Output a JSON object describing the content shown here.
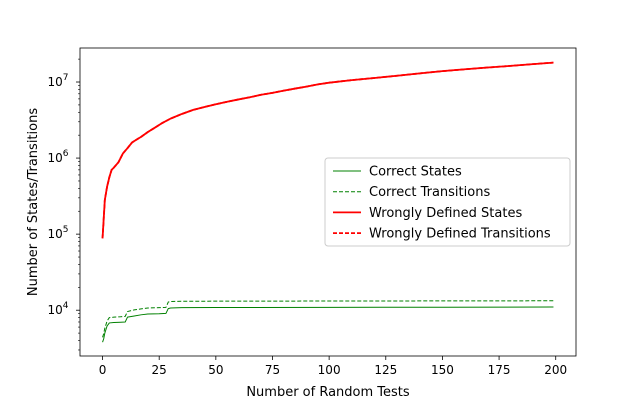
{
  "chart_data": {
    "type": "line",
    "title": "",
    "xlabel": "Number of Random Tests",
    "ylabel": "Number of States/Transitions",
    "xlim": [
      -9.95,
      208.95
    ],
    "ylim": [
      2500,
      28000000
    ],
    "yscale": "log",
    "grid": false,
    "legend_position": "center-right",
    "x_ticks": [
      0,
      25,
      50,
      75,
      100,
      125,
      150,
      175,
      200
    ],
    "y_ticks": [
      {
        "value": 10000,
        "base": "10",
        "exp": "4"
      },
      {
        "value": 100000,
        "base": "10",
        "exp": "5"
      },
      {
        "value": 1000000,
        "base": "10",
        "exp": "6"
      },
      {
        "value": 10000000,
        "base": "10",
        "exp": "7"
      }
    ],
    "series": [
      {
        "name": "Correct States",
        "color": "#008000",
        "style": "solid",
        "width": 1,
        "points": [
          [
            0,
            3800
          ],
          [
            0.5,
            4200
          ],
          [
            1,
            5000
          ],
          [
            2,
            6200
          ],
          [
            3,
            6800
          ],
          [
            5,
            6900
          ],
          [
            8,
            6950
          ],
          [
            10,
            7000
          ],
          [
            11,
            8100
          ],
          [
            14,
            8400
          ],
          [
            17,
            8700
          ],
          [
            20,
            8900
          ],
          [
            25,
            9000
          ],
          [
            28,
            9100
          ],
          [
            29,
            10500
          ],
          [
            30,
            10700
          ],
          [
            35,
            10800
          ],
          [
            50,
            10850
          ],
          [
            100,
            10900
          ],
          [
            150,
            10950
          ],
          [
            199,
            11000
          ]
        ]
      },
      {
        "name": "Correct Transitions",
        "color": "#008000",
        "style": "dashed",
        "width": 1,
        "points": [
          [
            0,
            4400
          ],
          [
            0.5,
            4900
          ],
          [
            1,
            5800
          ],
          [
            2,
            7200
          ],
          [
            3,
            8000
          ],
          [
            5,
            8100
          ],
          [
            8,
            8200
          ],
          [
            10,
            8300
          ],
          [
            11,
            9600
          ],
          [
            14,
            10100
          ],
          [
            17,
            10400
          ],
          [
            20,
            10700
          ],
          [
            25,
            10800
          ],
          [
            28,
            10900
          ],
          [
            29,
            12800
          ],
          [
            30,
            13000
          ],
          [
            35,
            13100
          ],
          [
            50,
            13150
          ],
          [
            100,
            13200
          ],
          [
            150,
            13250
          ],
          [
            199,
            13300
          ]
        ]
      },
      {
        "name": "Wrongly Defined States",
        "color": "#ff0000",
        "style": "solid",
        "width": 1.8,
        "points": [
          [
            0,
            88000
          ],
          [
            1,
            280000
          ],
          [
            2,
            420000
          ],
          [
            3,
            560000
          ],
          [
            4,
            700000
          ],
          [
            5,
            750000
          ],
          [
            7,
            880000
          ],
          [
            9,
            1150000
          ],
          [
            11,
            1350000
          ],
          [
            13,
            1600000
          ],
          [
            15,
            1750000
          ],
          [
            17,
            1900000
          ],
          [
            20,
            2200000
          ],
          [
            23,
            2500000
          ],
          [
            26,
            2850000
          ],
          [
            30,
            3300000
          ],
          [
            35,
            3800000
          ],
          [
            40,
            4300000
          ],
          [
            45,
            4700000
          ],
          [
            50,
            5100000
          ],
          [
            55,
            5500000
          ],
          [
            60,
            5900000
          ],
          [
            65,
            6300000
          ],
          [
            70,
            6800000
          ],
          [
            75,
            7200000
          ],
          [
            80,
            7700000
          ],
          [
            85,
            8200000
          ],
          [
            90,
            8700000
          ],
          [
            95,
            9300000
          ],
          [
            100,
            9800000
          ],
          [
            110,
            10600000
          ],
          [
            120,
            11300000
          ],
          [
            130,
            12100000
          ],
          [
            140,
            13000000
          ],
          [
            150,
            13900000
          ],
          [
            160,
            14700000
          ],
          [
            170,
            15500000
          ],
          [
            180,
            16300000
          ],
          [
            190,
            17200000
          ],
          [
            199,
            18000000
          ]
        ]
      },
      {
        "name": "Wrongly Defined Transitions",
        "color": "#ff0000",
        "style": "dashed",
        "width": 1.8,
        "points": [
          [
            0,
            88000
          ],
          [
            1,
            280000
          ],
          [
            2,
            420000
          ],
          [
            3,
            560000
          ],
          [
            4,
            700000
          ],
          [
            5,
            750000
          ],
          [
            7,
            880000
          ],
          [
            9,
            1150000
          ],
          [
            11,
            1350000
          ],
          [
            13,
            1600000
          ],
          [
            15,
            1750000
          ],
          [
            17,
            1900000
          ],
          [
            20,
            2200000
          ],
          [
            23,
            2500000
          ],
          [
            26,
            2850000
          ],
          [
            30,
            3300000
          ],
          [
            35,
            3800000
          ],
          [
            40,
            4300000
          ],
          [
            45,
            4700000
          ],
          [
            50,
            5100000
          ],
          [
            55,
            5500000
          ],
          [
            60,
            5900000
          ],
          [
            65,
            6300000
          ],
          [
            70,
            6800000
          ],
          [
            75,
            7200000
          ],
          [
            80,
            7700000
          ],
          [
            85,
            8200000
          ],
          [
            90,
            8700000
          ],
          [
            95,
            9300000
          ],
          [
            100,
            9800000
          ],
          [
            110,
            10600000
          ],
          [
            120,
            11300000
          ],
          [
            130,
            12100000
          ],
          [
            140,
            13000000
          ],
          [
            150,
            13900000
          ],
          [
            160,
            14700000
          ],
          [
            170,
            15500000
          ],
          [
            180,
            16300000
          ],
          [
            190,
            17200000
          ],
          [
            199,
            18000000
          ]
        ]
      }
    ]
  }
}
